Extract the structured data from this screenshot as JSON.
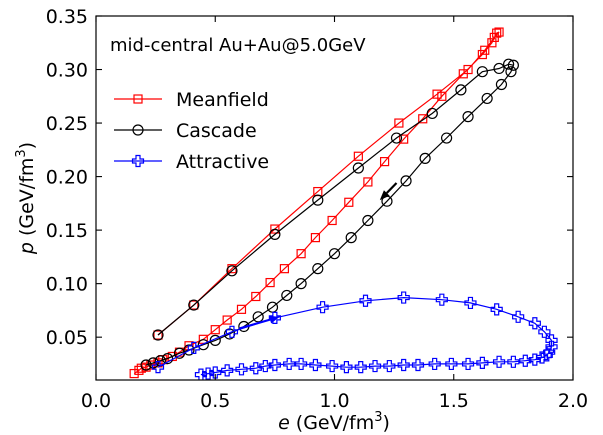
{
  "chart_data": {
    "type": "line",
    "annotation": "mid-central Au+Au@5.0GeV",
    "xlabel_var": "e",
    "xlabel_unit": "(GeV/fm",
    "ylabel_var": "p",
    "ylabel_unit": "(GeV/fm",
    "xlim": [
      0.0,
      2.0
    ],
    "ylim": [
      0.01,
      0.35
    ],
    "x_ticks": [
      "0.0",
      "0.5",
      "1.0",
      "1.5",
      "2.0"
    ],
    "y_ticks": [
      "0.05",
      "0.10",
      "0.15",
      "0.20",
      "0.25",
      "0.30",
      "0.35"
    ],
    "grid": false,
    "legend_position": "upper-left",
    "series": [
      {
        "name": "Meanfield",
        "color": "#ff0000",
        "marker": "square",
        "points": [
          [
            0.26,
            0.052
          ],
          [
            0.41,
            0.08
          ],
          [
            0.57,
            0.114
          ],
          [
            0.75,
            0.151
          ],
          [
            0.93,
            0.186
          ],
          [
            1.1,
            0.219
          ],
          [
            1.27,
            0.25
          ],
          [
            1.43,
            0.277
          ],
          [
            1.56,
            0.3
          ],
          [
            1.63,
            0.318
          ],
          [
            1.67,
            0.33
          ],
          [
            1.69,
            0.335
          ],
          [
            1.68,
            0.334
          ],
          [
            1.66,
            0.325
          ],
          [
            1.62,
            0.314
          ],
          [
            1.54,
            0.296
          ],
          [
            1.45,
            0.275
          ],
          [
            1.37,
            0.254
          ],
          [
            1.29,
            0.235
          ],
          [
            1.21,
            0.214
          ],
          [
            1.14,
            0.195
          ],
          [
            1.06,
            0.176
          ],
          [
            0.99,
            0.159
          ],
          [
            0.92,
            0.143
          ],
          [
            0.86,
            0.128
          ],
          [
            0.79,
            0.114
          ],
          [
            0.73,
            0.101
          ],
          [
            0.67,
            0.088
          ],
          [
            0.61,
            0.076
          ],
          [
            0.55,
            0.066
          ],
          [
            0.5,
            0.057
          ],
          [
            0.45,
            0.048
          ],
          [
            0.39,
            0.042
          ],
          [
            0.35,
            0.036
          ],
          [
            0.32,
            0.032
          ],
          [
            0.28,
            0.029
          ],
          [
            0.26,
            0.026
          ],
          [
            0.23,
            0.024
          ],
          [
            0.21,
            0.022
          ],
          [
            0.19,
            0.021
          ],
          [
            0.18,
            0.019
          ],
          [
            0.16,
            0.016
          ]
        ]
      },
      {
        "name": "Cascade",
        "color": "#000000",
        "marker": "circle",
        "points": [
          [
            0.26,
            0.052
          ],
          [
            0.41,
            0.08
          ],
          [
            0.57,
            0.112
          ],
          [
            0.75,
            0.146
          ],
          [
            0.93,
            0.178
          ],
          [
            1.1,
            0.208
          ],
          [
            1.26,
            0.236
          ],
          [
            1.41,
            0.259
          ],
          [
            1.53,
            0.281
          ],
          [
            1.62,
            0.298
          ],
          [
            1.69,
            0.301
          ],
          [
            1.73,
            0.305
          ],
          [
            1.75,
            0.304
          ],
          [
            1.74,
            0.298
          ],
          [
            1.7,
            0.286
          ],
          [
            1.64,
            0.273
          ],
          [
            1.56,
            0.256
          ],
          [
            1.47,
            0.236
          ],
          [
            1.38,
            0.217
          ],
          [
            1.3,
            0.196
          ],
          [
            1.22,
            0.177
          ],
          [
            1.14,
            0.159
          ],
          [
            1.07,
            0.143
          ],
          [
            1.0,
            0.128
          ],
          [
            0.93,
            0.114
          ],
          [
            0.86,
            0.1
          ],
          [
            0.8,
            0.089
          ],
          [
            0.74,
            0.078
          ],
          [
            0.68,
            0.069
          ],
          [
            0.62,
            0.06
          ],
          [
            0.56,
            0.053
          ],
          [
            0.5,
            0.047
          ],
          [
            0.45,
            0.043
          ],
          [
            0.39,
            0.038
          ],
          [
            0.35,
            0.035
          ],
          [
            0.3,
            0.03
          ],
          [
            0.27,
            0.028
          ],
          [
            0.24,
            0.026
          ],
          [
            0.21,
            0.024
          ]
        ]
      },
      {
        "name": "Attractive",
        "color": "#0000ff",
        "marker": "plus",
        "points": [
          [
            0.26,
            0.022
          ],
          [
            0.41,
            0.04
          ],
          [
            0.57,
            0.055
          ],
          [
            0.75,
            0.068
          ],
          [
            0.95,
            0.078
          ],
          [
            1.13,
            0.084
          ],
          [
            1.29,
            0.087
          ],
          [
            1.45,
            0.085
          ],
          [
            1.57,
            0.082
          ],
          [
            1.68,
            0.076
          ],
          [
            1.77,
            0.069
          ],
          [
            1.84,
            0.063
          ],
          [
            1.88,
            0.055
          ],
          [
            1.91,
            0.047
          ],
          [
            1.91,
            0.041
          ],
          [
            1.9,
            0.036
          ],
          [
            1.89,
            0.033
          ],
          [
            1.87,
            0.031
          ],
          [
            1.84,
            0.029
          ],
          [
            1.8,
            0.028
          ],
          [
            1.75,
            0.027
          ],
          [
            1.69,
            0.027
          ],
          [
            1.62,
            0.026
          ],
          [
            1.56,
            0.025
          ],
          [
            1.49,
            0.025
          ],
          [
            1.42,
            0.025
          ],
          [
            1.35,
            0.024
          ],
          [
            1.29,
            0.024
          ],
          [
            1.23,
            0.023
          ],
          [
            1.17,
            0.023
          ],
          [
            1.11,
            0.022
          ],
          [
            1.05,
            0.022
          ],
          [
            0.99,
            0.023
          ],
          [
            0.92,
            0.024
          ],
          [
            0.86,
            0.025
          ],
          [
            0.81,
            0.025
          ],
          [
            0.75,
            0.024
          ],
          [
            0.71,
            0.023
          ],
          [
            0.67,
            0.021
          ],
          [
            0.61,
            0.02
          ],
          [
            0.55,
            0.019
          ],
          [
            0.5,
            0.017
          ],
          [
            0.47,
            0.016
          ],
          [
            0.44,
            0.015
          ]
        ]
      }
    ],
    "arrows": [
      {
        "series": "Cascade",
        "color": "#000000",
        "from": [
          1.26,
          0.194
        ],
        "to": [
          1.19,
          0.178
        ]
      },
      {
        "series": "Attractive",
        "color": "#0000ff",
        "from": [
          0.6,
          0.058
        ],
        "to": [
          0.77,
          0.069
        ]
      }
    ]
  }
}
